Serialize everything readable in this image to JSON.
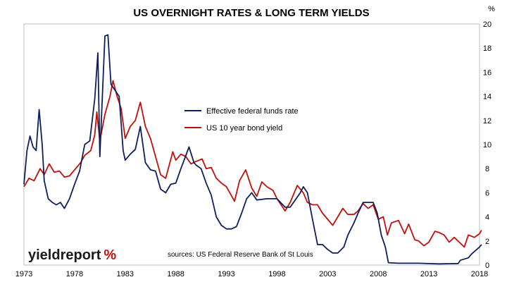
{
  "chart_data": {
    "type": "line",
    "title": "US OVERNIGHT RATES & LONG TERM YIELDS",
    "y_unit": "%",
    "x_range": [
      1973,
      2018
    ],
    "ylim": [
      0,
      20
    ],
    "x_ticks": [
      "1973",
      "1978",
      "1983",
      "1988",
      "1993",
      "1998",
      "2003",
      "2008",
      "2013",
      "2018"
    ],
    "y_ticks": [
      "0",
      "2",
      "4",
      "6",
      "8",
      "10",
      "12",
      "14",
      "16",
      "18",
      "20"
    ],
    "grid": false,
    "legend_position": "center",
    "series": [
      {
        "name": "Effective federal funds rate",
        "color": "#0d1f5c",
        "points": [
          [
            1973.0,
            6.7
          ],
          [
            1973.3,
            9.5
          ],
          [
            1973.6,
            10.7
          ],
          [
            1973.9,
            9.8
          ],
          [
            1974.2,
            9.5
          ],
          [
            1974.5,
            12.9
          ],
          [
            1974.8,
            10.0
          ],
          [
            1975.0,
            7.0
          ],
          [
            1975.4,
            5.5
          ],
          [
            1975.8,
            5.2
          ],
          [
            1976.2,
            5.0
          ],
          [
            1976.6,
            5.2
          ],
          [
            1977.0,
            4.7
          ],
          [
            1977.5,
            5.5
          ],
          [
            1978.0,
            6.7
          ],
          [
            1978.5,
            7.8
          ],
          [
            1979.0,
            10.0
          ],
          [
            1979.5,
            10.3
          ],
          [
            1980.0,
            13.8
          ],
          [
            1980.3,
            17.6
          ],
          [
            1980.5,
            9.0
          ],
          [
            1980.8,
            15.0
          ],
          [
            1981.0,
            19.0
          ],
          [
            1981.3,
            19.1
          ],
          [
            1981.6,
            15.0
          ],
          [
            1982.0,
            14.5
          ],
          [
            1982.4,
            14.0
          ],
          [
            1982.8,
            9.5
          ],
          [
            1983.0,
            8.7
          ],
          [
            1983.5,
            9.2
          ],
          [
            1984.0,
            9.6
          ],
          [
            1984.5,
            11.5
          ],
          [
            1985.0,
            8.5
          ],
          [
            1985.5,
            7.9
          ],
          [
            1986.0,
            7.8
          ],
          [
            1986.5,
            6.3
          ],
          [
            1987.0,
            6.0
          ],
          [
            1987.5,
            6.7
          ],
          [
            1988.0,
            6.8
          ],
          [
            1988.5,
            8.0
          ],
          [
            1989.0,
            9.1
          ],
          [
            1989.3,
            9.8
          ],
          [
            1989.8,
            8.5
          ],
          [
            1990.0,
            8.3
          ],
          [
            1990.5,
            8.0
          ],
          [
            1991.0,
            6.8
          ],
          [
            1991.5,
            5.8
          ],
          [
            1992.0,
            4.0
          ],
          [
            1992.5,
            3.3
          ],
          [
            1993.0,
            3.0
          ],
          [
            1993.5,
            3.0
          ],
          [
            1994.0,
            3.2
          ],
          [
            1994.5,
            4.3
          ],
          [
            1995.0,
            5.5
          ],
          [
            1995.5,
            6.0
          ],
          [
            1996.0,
            5.4
          ],
          [
            1997.0,
            5.5
          ],
          [
            1998.0,
            5.5
          ],
          [
            1998.8,
            4.8
          ],
          [
            1999.3,
            4.8
          ],
          [
            1999.8,
            5.4
          ],
          [
            2000.3,
            6.0
          ],
          [
            2000.6,
            6.5
          ],
          [
            2001.0,
            6.0
          ],
          [
            2001.5,
            3.8
          ],
          [
            2002.0,
            1.7
          ],
          [
            2002.5,
            1.7
          ],
          [
            2003.0,
            1.3
          ],
          [
            2003.5,
            1.0
          ],
          [
            2004.0,
            1.0
          ],
          [
            2004.6,
            1.5
          ],
          [
            2005.0,
            2.5
          ],
          [
            2005.6,
            3.5
          ],
          [
            2006.0,
            4.3
          ],
          [
            2006.5,
            5.2
          ],
          [
            2007.5,
            5.2
          ],
          [
            2007.9,
            4.3
          ],
          [
            2008.3,
            2.5
          ],
          [
            2008.7,
            1.5
          ],
          [
            2009.0,
            0.2
          ],
          [
            2010.0,
            0.15
          ],
          [
            2012.0,
            0.15
          ],
          [
            2014.0,
            0.1
          ],
          [
            2015.9,
            0.13
          ],
          [
            2016.1,
            0.4
          ],
          [
            2016.9,
            0.6
          ],
          [
            2017.2,
            0.9
          ],
          [
            2017.6,
            1.2
          ],
          [
            2018.0,
            1.5
          ],
          [
            2018.2,
            1.7
          ]
        ]
      },
      {
        "name": "US 10 year bond yield",
        "color": "#c0100c",
        "points": [
          [
            1973.0,
            6.5
          ],
          [
            1973.5,
            7.2
          ],
          [
            1974.0,
            7.0
          ],
          [
            1974.6,
            8.0
          ],
          [
            1975.0,
            7.5
          ],
          [
            1975.5,
            8.4
          ],
          [
            1976.0,
            7.7
          ],
          [
            1976.5,
            7.8
          ],
          [
            1977.0,
            7.3
          ],
          [
            1977.5,
            7.4
          ],
          [
            1978.0,
            7.9
          ],
          [
            1978.6,
            8.5
          ],
          [
            1979.0,
            9.1
          ],
          [
            1979.6,
            9.5
          ],
          [
            1980.0,
            10.8
          ],
          [
            1980.2,
            12.7
          ],
          [
            1980.5,
            10.3
          ],
          [
            1981.0,
            12.5
          ],
          [
            1981.5,
            14.0
          ],
          [
            1981.8,
            15.3
          ],
          [
            1982.2,
            14.0
          ],
          [
            1982.6,
            13.0
          ],
          [
            1983.0,
            10.5
          ],
          [
            1983.5,
            11.5
          ],
          [
            1984.0,
            12.0
          ],
          [
            1984.5,
            13.5
          ],
          [
            1985.0,
            11.5
          ],
          [
            1985.5,
            10.5
          ],
          [
            1986.0,
            9.0
          ],
          [
            1986.5,
            7.5
          ],
          [
            1987.0,
            7.2
          ],
          [
            1987.7,
            9.4
          ],
          [
            1988.0,
            8.7
          ],
          [
            1988.5,
            9.2
          ],
          [
            1989.0,
            9.0
          ],
          [
            1989.5,
            8.4
          ],
          [
            1990.0,
            8.6
          ],
          [
            1990.6,
            8.8
          ],
          [
            1991.0,
            8.0
          ],
          [
            1991.5,
            8.1
          ],
          [
            1992.0,
            7.2
          ],
          [
            1992.5,
            6.8
          ],
          [
            1993.0,
            6.5
          ],
          [
            1993.8,
            5.3
          ],
          [
            1994.3,
            7.0
          ],
          [
            1994.9,
            7.9
          ],
          [
            1995.5,
            6.4
          ],
          [
            1996.0,
            5.7
          ],
          [
            1996.5,
            6.9
          ],
          [
            1997.0,
            6.5
          ],
          [
            1997.6,
            6.2
          ],
          [
            1998.0,
            5.5
          ],
          [
            1998.8,
            4.5
          ],
          [
            1999.3,
            5.2
          ],
          [
            2000.0,
            6.6
          ],
          [
            2000.6,
            6.0
          ],
          [
            2001.0,
            5.2
          ],
          [
            2001.5,
            5.0
          ],
          [
            2002.0,
            5.0
          ],
          [
            2002.5,
            4.3
          ],
          [
            2003.0,
            3.8
          ],
          [
            2003.5,
            3.3
          ],
          [
            2004.0,
            4.0
          ],
          [
            2004.5,
            4.7
          ],
          [
            2005.0,
            4.2
          ],
          [
            2005.6,
            4.2
          ],
          [
            2006.0,
            4.5
          ],
          [
            2006.5,
            5.1
          ],
          [
            2007.0,
            4.7
          ],
          [
            2007.5,
            5.0
          ],
          [
            2008.0,
            3.8
          ],
          [
            2008.5,
            4.0
          ],
          [
            2008.9,
            2.5
          ],
          [
            2009.3,
            3.5
          ],
          [
            2010.0,
            3.7
          ],
          [
            2010.6,
            2.6
          ],
          [
            2011.0,
            3.4
          ],
          [
            2011.6,
            2.1
          ],
          [
            2012.0,
            2.0
          ],
          [
            2012.5,
            1.6
          ],
          [
            2013.0,
            1.9
          ],
          [
            2013.6,
            2.8
          ],
          [
            2014.0,
            2.7
          ],
          [
            2014.5,
            2.5
          ],
          [
            2015.0,
            1.9
          ],
          [
            2015.5,
            2.3
          ],
          [
            2016.0,
            1.9
          ],
          [
            2016.5,
            1.5
          ],
          [
            2016.9,
            2.5
          ],
          [
            2017.5,
            2.3
          ],
          [
            2018.0,
            2.6
          ],
          [
            2018.2,
            2.9
          ]
        ]
      }
    ],
    "source_note": "sources: US Federal Reserve Bank of St Louis",
    "logo": {
      "text": "yieldreport",
      "mark": "%"
    }
  }
}
